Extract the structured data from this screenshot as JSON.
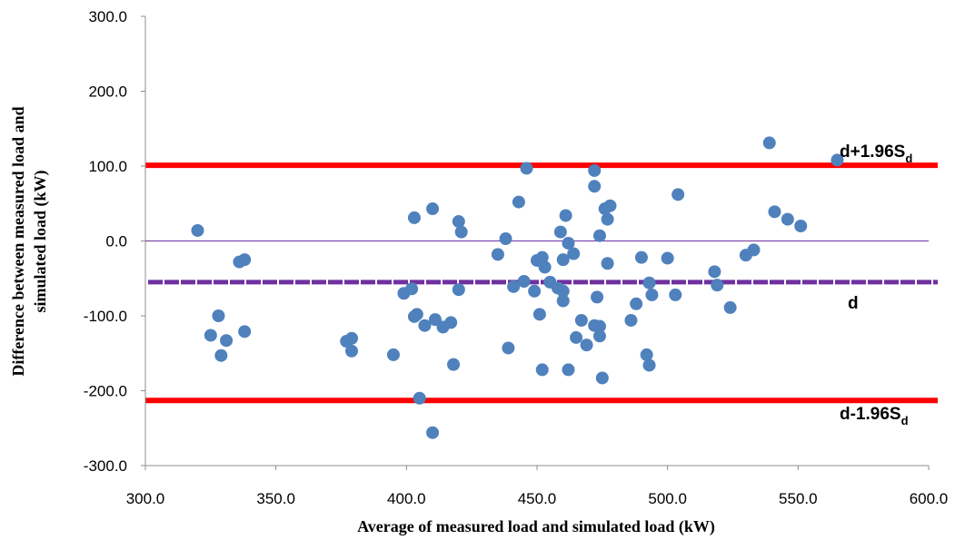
{
  "chart_data": {
    "type": "scatter",
    "xlabel": "Average  of measured load and simulated load (kW)",
    "ylabel_line1": "Difference between measured load and",
    "ylabel_line2": "simulated load (kW)",
    "xlim": [
      300,
      600
    ],
    "ylim": [
      -300,
      300
    ],
    "x_ticks": [
      "300.0",
      "350.0",
      "400.0",
      "450.0",
      "500.0",
      "550.0",
      "600.0"
    ],
    "x_tick_values": [
      300,
      350,
      400,
      450,
      500,
      550,
      600
    ],
    "y_ticks": [
      "300.0",
      "200.0",
      "100.0",
      "0.0",
      "-100.0",
      "-200.0",
      "-300.0"
    ],
    "y_tick_values": [
      300,
      200,
      100,
      0,
      -100,
      -200,
      -300
    ],
    "lines": {
      "upper_limit": {
        "y": 101,
        "color": "#ff0000"
      },
      "mean": {
        "y": -55,
        "color": "#7030a0"
      },
      "lower_limit": {
        "y": -213,
        "color": "#ff0000"
      },
      "zero": {
        "y": 0,
        "color": "#7030a0"
      }
    },
    "annotations": {
      "upper": {
        "main": "d+1.96S",
        "sub": "d"
      },
      "mean": {
        "main": "d"
      },
      "lower": {
        "main": "d-1.96S",
        "sub": "d"
      }
    },
    "point_color": "#4f81bd",
    "points": [
      [
        320,
        14
      ],
      [
        325,
        -126
      ],
      [
        328,
        -100
      ],
      [
        329,
        -153
      ],
      [
        331,
        -133
      ],
      [
        336,
        -28
      ],
      [
        338,
        -25
      ],
      [
        338,
        -121
      ],
      [
        377,
        -134
      ],
      [
        379,
        -130
      ],
      [
        379,
        -147
      ],
      [
        395,
        -152
      ],
      [
        399,
        -70
      ],
      [
        402,
        -64
      ],
      [
        403,
        31
      ],
      [
        403,
        -101
      ],
      [
        404,
        -98
      ],
      [
        405,
        -210
      ],
      [
        407,
        -113
      ],
      [
        410,
        43
      ],
      [
        410,
        -256
      ],
      [
        411,
        -105
      ],
      [
        414,
        -115
      ],
      [
        417,
        -109
      ],
      [
        418,
        -165
      ],
      [
        420,
        26
      ],
      [
        420,
        -65
      ],
      [
        421,
        12
      ],
      [
        435,
        -18
      ],
      [
        438,
        3
      ],
      [
        439,
        -143
      ],
      [
        441,
        -61
      ],
      [
        443,
        52
      ],
      [
        445,
        -54
      ],
      [
        446,
        97
      ],
      [
        449,
        -67
      ],
      [
        450,
        -26
      ],
      [
        451,
        -98
      ],
      [
        452,
        -22
      ],
      [
        452,
        -172
      ],
      [
        453,
        -35
      ],
      [
        455,
        -55
      ],
      [
        458,
        -63
      ],
      [
        459,
        12
      ],
      [
        460,
        -67
      ],
      [
        460,
        -25
      ],
      [
        460,
        -80
      ],
      [
        461,
        34
      ],
      [
        462,
        -3
      ],
      [
        462,
        -172
      ],
      [
        464,
        -17
      ],
      [
        465,
        -129
      ],
      [
        467,
        -106
      ],
      [
        469,
        -139
      ],
      [
        472,
        94
      ],
      [
        472,
        73
      ],
      [
        472,
        -113
      ],
      [
        473,
        -75
      ],
      [
        474,
        -127
      ],
      [
        474,
        -114
      ],
      [
        474,
        7
      ],
      [
        475,
        -183
      ],
      [
        476,
        43
      ],
      [
        477,
        -30
      ],
      [
        477,
        29
      ],
      [
        478,
        47
      ],
      [
        486,
        -106
      ],
      [
        488,
        -84
      ],
      [
        490,
        -22
      ],
      [
        492,
        -152
      ],
      [
        493,
        -56
      ],
      [
        493,
        -166
      ],
      [
        494,
        -72
      ],
      [
        500,
        -23
      ],
      [
        503,
        -72
      ],
      [
        504,
        62
      ],
      [
        518,
        -41
      ],
      [
        519,
        -59
      ],
      [
        524,
        -89
      ],
      [
        530,
        -19
      ],
      [
        533,
        -12
      ],
      [
        539,
        131
      ],
      [
        541,
        39
      ],
      [
        546,
        29
      ],
      [
        551,
        20
      ],
      [
        565,
        108
      ]
    ]
  }
}
